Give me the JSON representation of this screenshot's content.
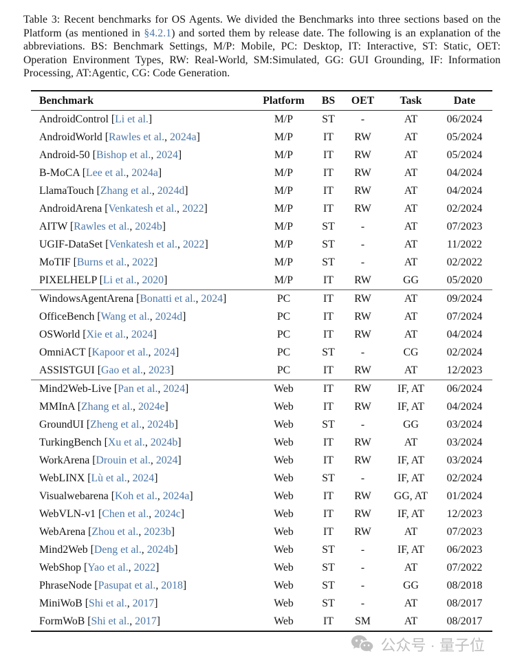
{
  "caption": {
    "before_ref": "Table 3: Recent benchmarks for OS Agents. We divided the Benchmarks into three sections based on the Platform (as mentioned in ",
    "ref": "§4.2.1",
    "after_ref": ") and sorted them by release date. The following is an explanation of the abbreviations. BS: Benchmark Settings, M/P: Mobile, PC: Desktop, IT: Interactive, ST: Static, OET: Operation Environment Types, RW: Real-World, SM:Simulated, GG: GUI Grounding, IF: Information Processing, AT:Agentic, CG: Code Generation."
  },
  "colors": {
    "link_blue": "#4b77a9",
    "text": "#141414",
    "rule_dark": "#1a1a1a",
    "rule_section": "#5a5a5a",
    "watermark_gray": "#bfbfbf"
  },
  "table": {
    "headers": [
      "Benchmark",
      "Platform",
      "BS",
      "OET",
      "Task",
      "Date"
    ],
    "sections": [
      {
        "rows": [
          {
            "name": "AndroidControl",
            "cite": "Li et al.",
            "year": "",
            "platform": "M/P",
            "bs": "ST",
            "oet": "-",
            "task": "AT",
            "date": "06/2024"
          },
          {
            "name": "AndroidWorld",
            "cite": "Rawles et al.",
            "year": "2024a",
            "platform": "M/P",
            "bs": "IT",
            "oet": "RW",
            "task": "AT",
            "date": "05/2024"
          },
          {
            "name": "Android-50",
            "cite": "Bishop et al.",
            "year": "2024",
            "platform": "M/P",
            "bs": "IT",
            "oet": "RW",
            "task": "AT",
            "date": "05/2024"
          },
          {
            "name": "B-MoCA",
            "cite": "Lee et al.",
            "year": "2024a",
            "platform": "M/P",
            "bs": "IT",
            "oet": "RW",
            "task": "AT",
            "date": "04/2024"
          },
          {
            "name": "LlamaTouch",
            "cite": "Zhang et al.",
            "year": "2024d",
            "platform": "M/P",
            "bs": "IT",
            "oet": "RW",
            "task": "AT",
            "date": "04/2024"
          },
          {
            "name": "AndroidArena",
            "cite": "Venkatesh et al.",
            "year": "2022",
            "platform": "M/P",
            "bs": "IT",
            "oet": "RW",
            "task": "AT",
            "date": "02/2024"
          },
          {
            "name": "AITW",
            "cite": "Rawles et al.",
            "year": "2024b",
            "platform": "M/P",
            "bs": "ST",
            "oet": "-",
            "task": "AT",
            "date": "07/2023"
          },
          {
            "name": "UGIF-DataSet",
            "cite": "Venkatesh et al.",
            "year": "2022",
            "platform": "M/P",
            "bs": "ST",
            "oet": "-",
            "task": "AT",
            "date": "11/2022"
          },
          {
            "name": "MoTIF",
            "cite": "Burns et al.",
            "year": "2022",
            "platform": "M/P",
            "bs": "ST",
            "oet": "-",
            "task": "AT",
            "date": "02/2022"
          },
          {
            "name": "PIXELHELP",
            "cite": "Li et al.",
            "year": "2020",
            "platform": "M/P",
            "bs": "IT",
            "oet": "RW",
            "task": "GG",
            "date": "05/2020"
          }
        ]
      },
      {
        "rows": [
          {
            "name": "WindowsAgentArena",
            "cite": "Bonatti et al.",
            "year": "2024",
            "platform": "PC",
            "bs": "IT",
            "oet": "RW",
            "task": "AT",
            "date": "09/2024"
          },
          {
            "name": "OfficeBench",
            "cite": "Wang et al.",
            "year": "2024d",
            "platform": "PC",
            "bs": "IT",
            "oet": "RW",
            "task": "AT",
            "date": "07/2024"
          },
          {
            "name": "OSWorld",
            "cite": "Xie et al.",
            "year": "2024",
            "platform": "PC",
            "bs": "IT",
            "oet": "RW",
            "task": "AT",
            "date": "04/2024"
          },
          {
            "name": "OmniACT",
            "cite": "Kapoor et al.",
            "year": "2024",
            "platform": "PC",
            "bs": "ST",
            "oet": "-",
            "task": "CG",
            "date": "02/2024"
          },
          {
            "name": "ASSISTGUI",
            "cite": "Gao et al.",
            "year": "2023",
            "platform": "PC",
            "bs": "IT",
            "oet": "RW",
            "task": "AT",
            "date": "12/2023"
          }
        ]
      },
      {
        "rows": [
          {
            "name": "Mind2Web-Live",
            "cite": "Pan et al.",
            "year": "2024",
            "platform": "Web",
            "bs": "IT",
            "oet": "RW",
            "task": "IF, AT",
            "date": "06/2024"
          },
          {
            "name": "MMInA",
            "cite": "Zhang et al.",
            "year": "2024e",
            "platform": "Web",
            "bs": "IT",
            "oet": "RW",
            "task": "IF, AT",
            "date": "04/2024"
          },
          {
            "name": "GroundUI",
            "cite": "Zheng et al.",
            "year": "2024b",
            "platform": "Web",
            "bs": "ST",
            "oet": "-",
            "task": "GG",
            "date": "03/2024"
          },
          {
            "name": "TurkingBench",
            "cite": "Xu et al.",
            "year": "2024b",
            "platform": "Web",
            "bs": "IT",
            "oet": "RW",
            "task": "AT",
            "date": "03/2024"
          },
          {
            "name": "WorkArena",
            "cite": "Drouin et al.",
            "year": "2024",
            "platform": "Web",
            "bs": "IT",
            "oet": "RW",
            "task": "IF, AT",
            "date": "03/2024"
          },
          {
            "name": "WebLINX",
            "cite": "Lù et al.",
            "year": "2024",
            "platform": "Web",
            "bs": "ST",
            "oet": "-",
            "task": "IF, AT",
            "date": "02/2024"
          },
          {
            "name": "Visualwebarena",
            "cite": "Koh et al.",
            "year": "2024a",
            "platform": "Web",
            "bs": "IT",
            "oet": "RW",
            "task": "GG, AT",
            "date": "01/2024"
          },
          {
            "name": "WebVLN-v1",
            "cite": "Chen et al.",
            "year": "2024c",
            "platform": "Web",
            "bs": "IT",
            "oet": "RW",
            "task": "IF, AT",
            "date": "12/2023"
          },
          {
            "name": "WebArena",
            "cite": "Zhou et al.",
            "year": "2023b",
            "platform": "Web",
            "bs": "IT",
            "oet": "RW",
            "task": "AT",
            "date": "07/2023"
          },
          {
            "name": "Mind2Web",
            "cite": "Deng et al.",
            "year": "2024b",
            "platform": "Web",
            "bs": "ST",
            "oet": "-",
            "task": "IF, AT",
            "date": "06/2023"
          },
          {
            "name": "WebShop",
            "cite": "Yao et al.",
            "year": "2022",
            "platform": "Web",
            "bs": "ST",
            "oet": "-",
            "task": "AT",
            "date": "07/2022"
          },
          {
            "name": "PhraseNode",
            "cite": "Pasupat et al.",
            "year": "2018",
            "platform": "Web",
            "bs": "ST",
            "oet": "-",
            "task": "GG",
            "date": "08/2018"
          },
          {
            "name": "MiniWoB",
            "cite": "Shi et al.",
            "year": "2017",
            "platform": "Web",
            "bs": "ST",
            "oet": "-",
            "task": "AT",
            "date": "08/2017"
          },
          {
            "name": "FormWoB",
            "cite": "Shi et al.",
            "year": "2017",
            "platform": "Web",
            "bs": "IT",
            "oet": "SM",
            "task": "AT",
            "date": "08/2017"
          }
        ]
      }
    ]
  },
  "watermark": {
    "icon": "wechat-icon",
    "text": "公众号 · 量子位"
  }
}
